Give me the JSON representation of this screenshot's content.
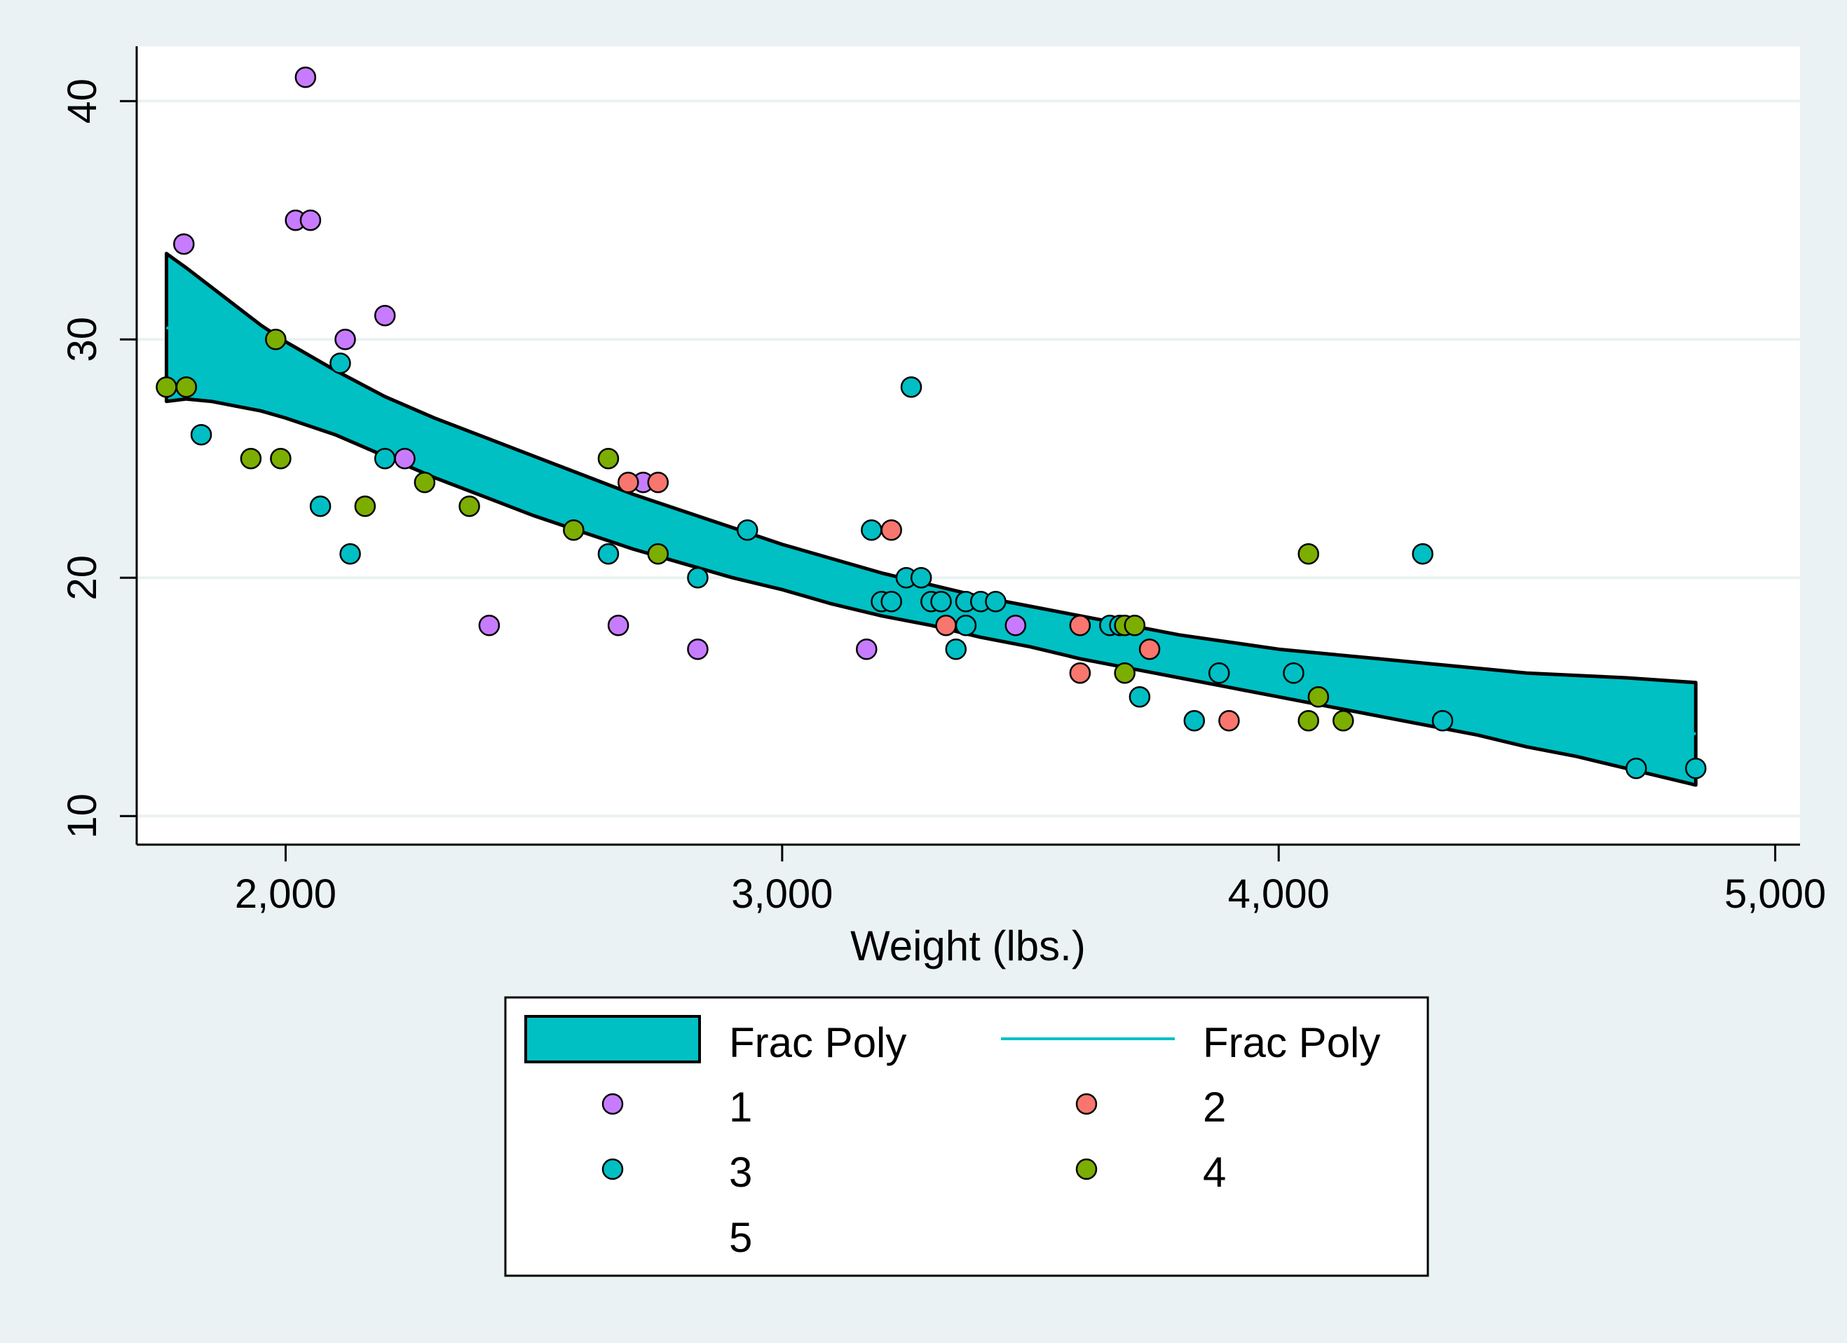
{
  "chart_data": {
    "type": "scatter",
    "title": "",
    "xlabel": "Weight (lbs.)",
    "ylabel": "",
    "xlim": [
      1700,
      5050
    ],
    "ylim": [
      8.8,
      42.3
    ],
    "x_ticks": [
      2000,
      3000,
      4000,
      5000
    ],
    "x_tick_labels": [
      "2,000",
      "3,000",
      "4,000",
      "5,000"
    ],
    "y_ticks": [
      10,
      20,
      30,
      40
    ],
    "y_tick_labels": [
      "10",
      "20",
      "30",
      "40"
    ],
    "grid": "horizontal",
    "legend_position": "bottom",
    "colors": {
      "background": "#eaf2f3",
      "plot_background": "#ffffff",
      "band": "#00c0c4",
      "fit_line": "#00c0c4",
      "1": "#c77cff",
      "2": "#f8766d",
      "3": "#00bfc4",
      "4": "#7cae00",
      "5": "#e76bf3"
    },
    "ci_band": {
      "name": "Frac Poly",
      "x": [
        1760,
        1800,
        1850,
        1900,
        1950,
        2000,
        2100,
        2200,
        2300,
        2400,
        2500,
        2600,
        2700,
        2800,
        2900,
        3000,
        3100,
        3200,
        3300,
        3400,
        3500,
        3600,
        3700,
        3800,
        3900,
        4000,
        4100,
        4200,
        4300,
        4400,
        4500,
        4600,
        4700,
        4840
      ],
      "upper": [
        33.6,
        33.0,
        32.2,
        31.4,
        30.6,
        29.9,
        28.7,
        27.6,
        26.7,
        25.9,
        25.1,
        24.3,
        23.5,
        22.8,
        22.1,
        21.4,
        20.8,
        20.2,
        19.7,
        19.2,
        18.8,
        18.4,
        18.0,
        17.6,
        17.3,
        17.0,
        16.8,
        16.6,
        16.4,
        16.2,
        16.0,
        15.9,
        15.8,
        15.6
      ],
      "lower": [
        27.4,
        27.5,
        27.4,
        27.2,
        27.0,
        26.7,
        26.0,
        25.1,
        24.2,
        23.4,
        22.6,
        21.9,
        21.2,
        20.6,
        20.0,
        19.5,
        18.9,
        18.4,
        18.0,
        17.5,
        17.1,
        16.6,
        16.2,
        15.8,
        15.4,
        15.0,
        14.6,
        14.2,
        13.8,
        13.4,
        12.9,
        12.5,
        12.0,
        11.3
      ]
    },
    "fit_line": {
      "name": "Frac Poly",
      "x": [
        1760,
        2000,
        2500,
        3000,
        3500,
        4000,
        4500,
        4840
      ],
      "y": [
        30.5,
        28.3,
        23.85,
        20.45,
        17.95,
        16.0,
        14.45,
        13.45
      ]
    },
    "series": [
      {
        "name": "1",
        "points": [
          [
            1795,
            34
          ],
          [
            2020,
            35
          ],
          [
            2040,
            41
          ],
          [
            2050,
            35
          ],
          [
            2120,
            30
          ],
          [
            2200,
            31
          ],
          [
            2240,
            25
          ],
          [
            2410,
            18
          ],
          [
            2670,
            18
          ],
          [
            2720,
            24
          ],
          [
            2830,
            17
          ],
          [
            3170,
            17
          ],
          [
            3470,
            18
          ]
        ]
      },
      {
        "name": "2",
        "points": [
          [
            2690,
            24
          ],
          [
            2750,
            24
          ],
          [
            3220,
            22
          ],
          [
            3330,
            18
          ],
          [
            3600,
            16
          ],
          [
            3600,
            18
          ],
          [
            3740,
            17
          ],
          [
            3900,
            14
          ]
        ]
      },
      {
        "name": "3",
        "points": [
          [
            1830,
            26
          ],
          [
            2070,
            23
          ],
          [
            2110,
            29
          ],
          [
            2130,
            21
          ],
          [
            2200,
            25
          ],
          [
            2650,
            21
          ],
          [
            2830,
            20
          ],
          [
            2930,
            22
          ],
          [
            3180,
            22
          ],
          [
            3200,
            19
          ],
          [
            3220,
            19
          ],
          [
            3250,
            20
          ],
          [
            3260,
            28
          ],
          [
            3280,
            20
          ],
          [
            3300,
            19
          ],
          [
            3320,
            19
          ],
          [
            3350,
            17
          ],
          [
            3370,
            18
          ],
          [
            3370,
            19
          ],
          [
            3400,
            19
          ],
          [
            3430,
            19
          ],
          [
            3660,
            18
          ],
          [
            3680,
            18
          ],
          [
            3720,
            15
          ],
          [
            3830,
            14
          ],
          [
            3880,
            16
          ],
          [
            4030,
            16
          ],
          [
            4290,
            21
          ],
          [
            4330,
            14
          ],
          [
            4720,
            12
          ],
          [
            4840,
            12
          ]
        ]
      },
      {
        "name": "4",
        "points": [
          [
            1760,
            28
          ],
          [
            1800,
            28
          ],
          [
            1930,
            25
          ],
          [
            1980,
            30
          ],
          [
            1990,
            25
          ],
          [
            2160,
            23
          ],
          [
            2280,
            24
          ],
          [
            2370,
            23
          ],
          [
            2580,
            22
          ],
          [
            2650,
            25
          ],
          [
            2750,
            21
          ],
          [
            3690,
            16
          ],
          [
            3690,
            18
          ],
          [
            3710,
            18
          ],
          [
            4060,
            14
          ],
          [
            4060,
            21
          ],
          [
            4080,
            15
          ],
          [
            4130,
            14
          ]
        ]
      },
      {
        "name": "5",
        "points": []
      }
    ],
    "legend": {
      "band_label": "Frac Poly",
      "line_label": "Frac Poly",
      "series_labels": [
        "1",
        "2",
        "3",
        "4",
        "5"
      ]
    }
  }
}
